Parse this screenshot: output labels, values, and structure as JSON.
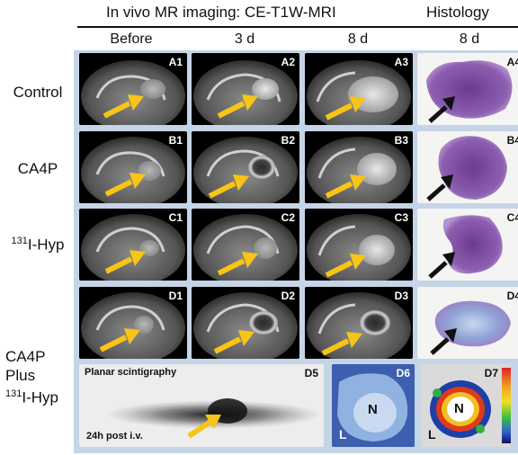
{
  "header": {
    "imaging_title": "In vivo MR imaging: CE-T1W-MRI",
    "histology_title": "Histology",
    "columns": [
      "Before",
      "3 d",
      "8 d",
      "8 d"
    ]
  },
  "rows": [
    {
      "label": "Control",
      "panels": [
        "A1",
        "A2",
        "A3",
        "A4"
      ]
    },
    {
      "label": "CA4P",
      "panels": [
        "B1",
        "B2",
        "B3",
        "B4"
      ]
    },
    {
      "label_sup": "131",
      "label": "I-Hyp",
      "panels": [
        "C1",
        "C2",
        "C3",
        "C4"
      ]
    },
    {
      "label_line1": "CA4P",
      "label_line2": "Plus",
      "label_sup": "131",
      "label_line3": "I-Hyp",
      "panels": [
        "D1",
        "D2",
        "D3",
        "D4"
      ]
    }
  ],
  "scintigraphy": {
    "title": "Planar scintigraphy",
    "subtitle": "24h post i.v.",
    "panel": "D5"
  },
  "d6": {
    "panel": "D6",
    "center": "N",
    "corner": "L"
  },
  "d7": {
    "panel": "D7",
    "center": "N",
    "corner": "L"
  },
  "colors": {
    "arrow_yellow": "#f7c417",
    "arrow_black": "#111111",
    "histo_purple": "#8a4fa8",
    "panel_bg": "#c5d4e6"
  }
}
